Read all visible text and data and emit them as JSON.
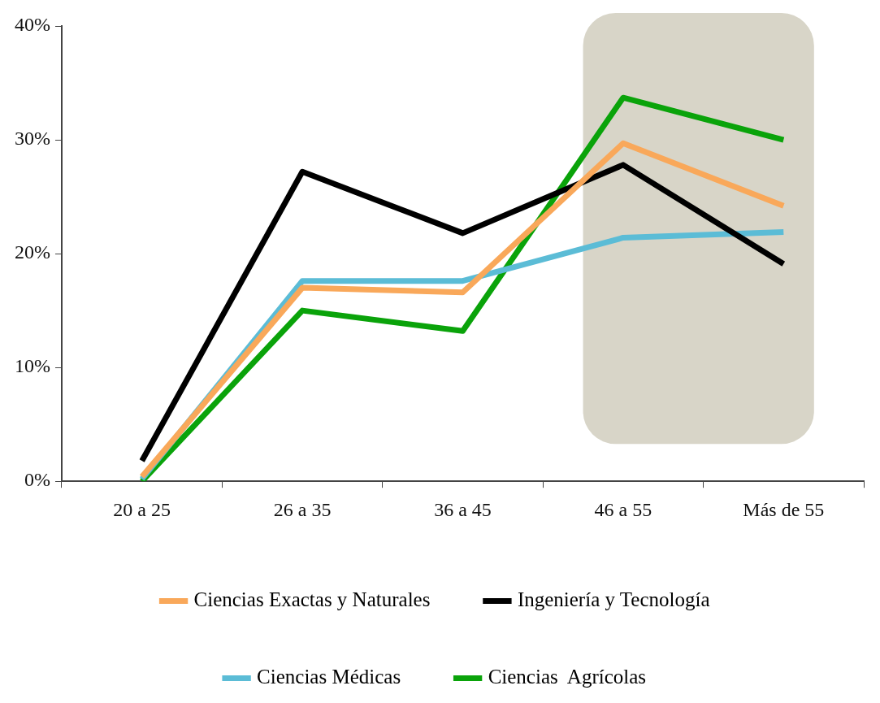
{
  "chart_data": {
    "type": "line",
    "categories": [
      "20 a 25",
      "26 a 35",
      "36 a 45",
      "46 a 55",
      "Más de 55"
    ],
    "series": [
      {
        "name": "Ciencias Exactas y Naturales",
        "color": "#f9a85a",
        "values": [
          0.4,
          17.0,
          16.6,
          29.7,
          24.2
        ]
      },
      {
        "name": "Ingeniería y Tecnología",
        "color": "#000000",
        "values": [
          1.8,
          27.2,
          21.8,
          27.8,
          19.1
        ]
      },
      {
        "name": "Ciencias Médicas",
        "color": "#5bbcd6",
        "values": [
          0.2,
          17.6,
          17.6,
          21.4,
          21.9
        ]
      },
      {
        "name": "Ciencias  Agrícolas",
        "color": "#0aa30a",
        "values": [
          0,
          15.0,
          13.2,
          33.7,
          30.0
        ]
      }
    ],
    "ylim": [
      0,
      40
    ],
    "yticks": [
      {
        "value": 0,
        "label": "0%"
      },
      {
        "value": 10,
        "label": "10%"
      },
      {
        "value": 20,
        "label": "20%"
      },
      {
        "value": 30,
        "label": "30%"
      },
      {
        "value": 40,
        "label": "40%"
      }
    ],
    "bands": [
      {
        "axis": "x",
        "from": "46 a 55",
        "to": "Más de 55",
        "color": "#d8d5c8"
      }
    ],
    "grid": false,
    "legend": "bottom",
    "marker": "none",
    "line_style": "solid"
  }
}
